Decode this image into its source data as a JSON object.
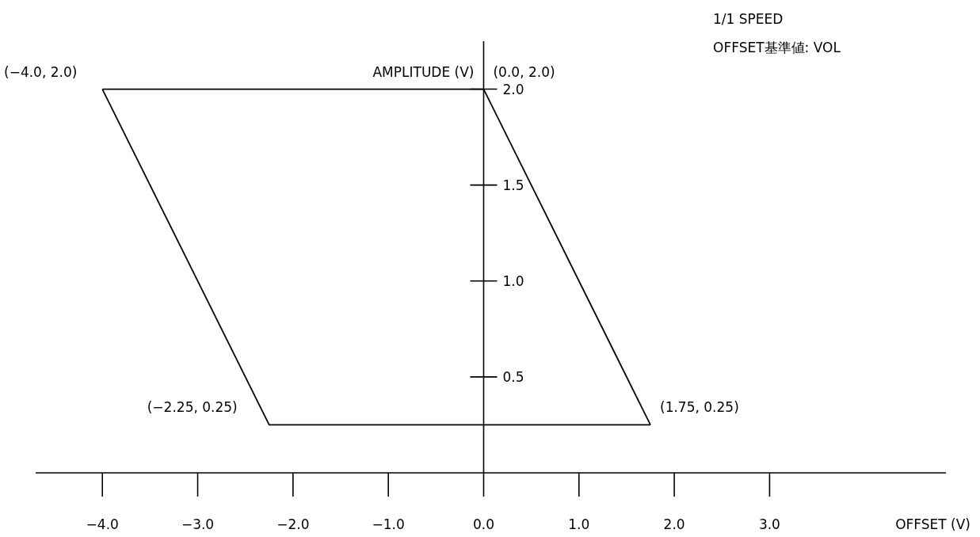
{
  "chart_data": {
    "type": "line",
    "xlabel": "OFFSET (V)",
    "ylabel": "AMPLITUDE (V)",
    "series": [
      {
        "color": "#000000",
        "x": [
          -4.0,
          0.0,
          1.75
        ],
        "values": [
          2.0,
          2.0,
          0.25
        ]
      },
      {
        "color": "#000000",
        "x": [
          -4.0,
          -2.25,
          1.75
        ],
        "values": [
          2.0,
          0.25,
          0.25
        ]
      }
    ],
    "xlim": [
      -4.7,
      4.85
    ],
    "ylim": [
      0,
      2.25
    ],
    "xticks": [
      {
        "value": -4,
        "label": "−4.0"
      },
      {
        "value": -3,
        "label": "−3.0"
      },
      {
        "value": -2,
        "label": "−2.0"
      },
      {
        "value": -1,
        "label": "−1.0"
      },
      {
        "value": 0,
        "label": "0.0"
      },
      {
        "value": 1,
        "label": "1.0"
      },
      {
        "value": 2,
        "label": "2.0"
      },
      {
        "value": 3,
        "label": "3.0"
      }
    ],
    "yticks": [
      {
        "value": 0.5,
        "label": "0.5"
      },
      {
        "value": 1,
        "label": "1.0"
      },
      {
        "value": 1.5,
        "label": "1.5"
      },
      {
        "value": 2,
        "label": "2.0"
      }
    ],
    "grid": false,
    "marker": "none",
    "line_style": "solid",
    "annotations": [
      {
        "text": "(−4.0, 2.0)",
        "x": -4.0,
        "y": 2.0
      },
      {
        "text": "(0.0, 2.0)",
        "x": 0.0,
        "y": 2.0
      },
      {
        "text": "(1.75, 0.25)",
        "x": 1.75,
        "y": 0.25
      },
      {
        "text": "(−2.25, 0.25)",
        "x": -2.25,
        "y": 0.25
      },
      "1/1 SPEED",
      "OFFSET基準値: VOL"
    ]
  }
}
